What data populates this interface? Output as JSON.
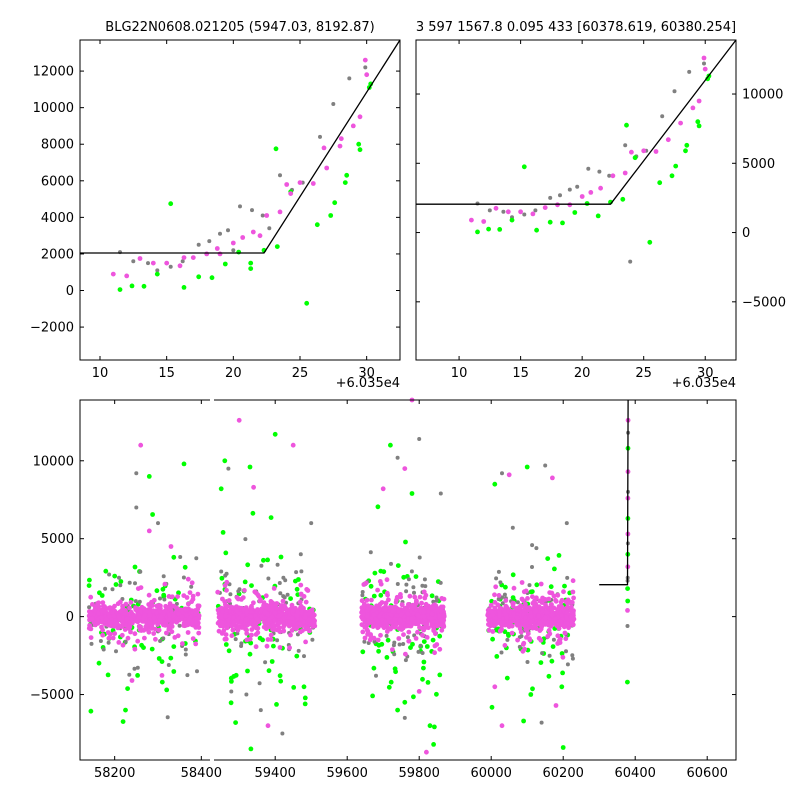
{
  "chart_data": [
    {
      "type": "scatter",
      "title": "BLG22N0608.021205 (5947.03, 8192.87)",
      "x_offset_label": "+6.035e4",
      "xlim": [
        8.5,
        32.5
      ],
      "ylim": [
        -3800,
        13700
      ],
      "xticks": [
        10,
        15,
        20,
        25,
        30
      ],
      "yticks": [
        -2000,
        0,
        2000,
        4000,
        6000,
        8000,
        10000,
        12000
      ],
      "model_line": [
        [
          8.5,
          2050
        ],
        [
          22.3,
          2050
        ],
        [
          32.5,
          13700
        ]
      ],
      "colors": {
        "gray": "#808080",
        "green": "#00ff00",
        "magenta": "#ee55dd"
      },
      "series": [
        {
          "color": "gray",
          "points": [
            [
              11.5,
              2100
            ],
            [
              12.5,
              1600
            ],
            [
              13.6,
              1500
            ],
            [
              14.3,
              1100
            ],
            [
              15.3,
              1300
            ],
            [
              16.2,
              1600
            ],
            [
              17.4,
              2500
            ],
            [
              18.2,
              2700
            ],
            [
              19.0,
              3100
            ],
            [
              19.6,
              3300
            ],
            [
              20.5,
              4600
            ],
            [
              21.4,
              4400
            ],
            [
              22.2,
              4100
            ],
            [
              23.5,
              6300
            ],
            [
              24.4,
              5500
            ],
            [
              25.2,
              5900
            ],
            [
              26.5,
              8400
            ],
            [
              27.5,
              10200
            ],
            [
              28.7,
              11600
            ],
            [
              29.9,
              12200
            ],
            [
              22.7,
              3400
            ],
            [
              20.0,
              2200
            ]
          ]
        },
        {
          "color": "green",
          "points": [
            [
              11.5,
              50
            ],
            [
              12.4,
              250
            ],
            [
              13.3,
              230
            ],
            [
              14.3,
              900
            ],
            [
              15.3,
              4750
            ],
            [
              16.3,
              170
            ],
            [
              17.4,
              750
            ],
            [
              18.4,
              700
            ],
            [
              19.4,
              1450
            ],
            [
              20.4,
              2100
            ],
            [
              21.3,
              1200
            ],
            [
              22.3,
              2200
            ],
            [
              23.2,
              7750
            ],
            [
              23.3,
              2400
            ],
            [
              24.3,
              5400
            ],
            [
              25.5,
              -700
            ],
            [
              26.3,
              3600
            ],
            [
              27.3,
              4100
            ],
            [
              27.6,
              4800
            ],
            [
              28.5,
              6300
            ],
            [
              28.4,
              5900
            ],
            [
              29.4,
              8000
            ],
            [
              29.5,
              7700
            ],
            [
              30.2,
              11100
            ],
            [
              30.3,
              11300
            ],
            [
              21.3,
              1500
            ]
          ]
        },
        {
          "color": "magenta",
          "points": [
            [
              11.0,
              900
            ],
            [
              12.0,
              800
            ],
            [
              13.0,
              1750
            ],
            [
              14.0,
              1500
            ],
            [
              15.0,
              1500
            ],
            [
              16.0,
              1350
            ],
            [
              17.0,
              1800
            ],
            [
              18.0,
              2000
            ],
            [
              19.0,
              2000
            ],
            [
              20.0,
              2600
            ],
            [
              20.7,
              2900
            ],
            [
              21.5,
              3200
            ],
            [
              22.5,
              4100
            ],
            [
              23.5,
              4300
            ],
            [
              24.0,
              5800
            ],
            [
              25.0,
              5900
            ],
            [
              26.0,
              5850
            ],
            [
              27.0,
              6700
            ],
            [
              28.0,
              7900
            ],
            [
              29.0,
              9000
            ],
            [
              29.5,
              9500
            ],
            [
              30.0,
              11800
            ],
            [
              29.9,
              12600
            ],
            [
              16.3,
              1800
            ],
            [
              18.8,
              2300
            ],
            [
              22.0,
              3000
            ],
            [
              24.3,
              5300
            ],
            [
              26.8,
              7800
            ],
            [
              28.1,
              8300
            ]
          ]
        }
      ]
    },
    {
      "type": "scatter",
      "title": "3 597 1567.8 0.095 433 [60378.619, 60380.254]",
      "x_offset_label": "+6.035e4",
      "xlim": [
        6.5,
        32.5
      ],
      "ylim": [
        -9200,
        13900
      ],
      "xticks": [
        10,
        15,
        20,
        25,
        30
      ],
      "yticks": [
        -5000,
        0,
        5000,
        10000
      ],
      "model_line": [
        [
          6.5,
          2050
        ],
        [
          22.3,
          2050
        ],
        [
          32.5,
          13900
        ]
      ],
      "colors": {
        "gray": "#808080",
        "green": "#00ff00",
        "magenta": "#ee55dd"
      },
      "series": [
        {
          "color": "gray",
          "points": [
            [
              11.5,
              2100
            ],
            [
              12.5,
              1600
            ],
            [
              13.6,
              1500
            ],
            [
              14.3,
              1100
            ],
            [
              15.3,
              1300
            ],
            [
              16.2,
              1600
            ],
            [
              17.4,
              2500
            ],
            [
              18.2,
              2700
            ],
            [
              19.0,
              3100
            ],
            [
              19.6,
              3300
            ],
            [
              20.5,
              4600
            ],
            [
              21.4,
              4400
            ],
            [
              22.2,
              4100
            ],
            [
              23.5,
              6300
            ],
            [
              23.9,
              -2100
            ],
            [
              24.4,
              5500
            ],
            [
              25.2,
              5900
            ],
            [
              26.5,
              8400
            ],
            [
              27.5,
              10200
            ],
            [
              28.7,
              11600
            ],
            [
              29.9,
              12200
            ]
          ]
        },
        {
          "color": "green",
          "points": [
            [
              11.5,
              50
            ],
            [
              12.4,
              250
            ],
            [
              13.3,
              230
            ],
            [
              14.3,
              900
            ],
            [
              15.3,
              4750
            ],
            [
              16.3,
              170
            ],
            [
              17.4,
              750
            ],
            [
              18.4,
              700
            ],
            [
              19.4,
              1450
            ],
            [
              20.4,
              2100
            ],
            [
              21.3,
              1200
            ],
            [
              22.3,
              2200
            ],
            [
              23.6,
              7750
            ],
            [
              23.3,
              2400
            ],
            [
              24.3,
              5400
            ],
            [
              25.5,
              -700
            ],
            [
              26.3,
              3600
            ],
            [
              27.3,
              4100
            ],
            [
              27.6,
              4800
            ],
            [
              28.5,
              6300
            ],
            [
              28.4,
              5900
            ],
            [
              29.4,
              8000
            ],
            [
              29.5,
              7700
            ],
            [
              30.2,
              11100
            ],
            [
              30.3,
              11300
            ]
          ]
        },
        {
          "color": "magenta",
          "points": [
            [
              11.0,
              900
            ],
            [
              12.0,
              800
            ],
            [
              13.0,
              1750
            ],
            [
              14.0,
              1500
            ],
            [
              15.0,
              1500
            ],
            [
              16.0,
              1350
            ],
            [
              17.0,
              1800
            ],
            [
              18.0,
              2000
            ],
            [
              19.0,
              2000
            ],
            [
              20.0,
              2600
            ],
            [
              20.7,
              2900
            ],
            [
              21.5,
              3200
            ],
            [
              22.5,
              4100
            ],
            [
              23.5,
              4300
            ],
            [
              24.0,
              5800
            ],
            [
              25.0,
              5900
            ],
            [
              26.0,
              5850
            ],
            [
              27.0,
              6700
            ],
            [
              28.0,
              7900
            ],
            [
              29.0,
              9000
            ],
            [
              29.5,
              9500
            ],
            [
              30.0,
              11800
            ],
            [
              29.9,
              12600
            ]
          ]
        }
      ]
    },
    {
      "type": "scatter",
      "broken_x_axis": true,
      "xlim_left": [
        58120,
        58420
      ],
      "xlim_right": [
        59230,
        60680
      ],
      "ylim": [
        -9200,
        13900
      ],
      "xticks_left": [
        58200,
        58400
      ],
      "xticks_right": [
        59400,
        59600,
        59800,
        60000,
        60200,
        60400,
        60600
      ],
      "yticks": [
        -5000,
        0,
        5000,
        10000
      ],
      "model_line": [
        [
          60300,
          2050
        ],
        [
          60378.6,
          2050
        ],
        [
          60380.3,
          13900
        ]
      ],
      "colors": {
        "gray": "#808080",
        "green": "#00ff00",
        "magenta": "#ee55dd"
      },
      "seasons": [
        {
          "x": [
            58140,
            58395
          ],
          "outliers": [
            [
              58225,
              -6000
            ],
            [
              58250,
              9200
            ],
            [
              58260,
              11000
            ],
            [
              58280,
              9000
            ],
            [
              58300,
              6000
            ],
            [
              58330,
              4500
            ],
            [
              58360,
              9800
            ],
            [
              58250,
              7000
            ],
            [
              58280,
              5500
            ],
            [
              58320,
              -4700
            ],
            [
              58390,
              -3500
            ],
            [
              58240,
              -4100
            ],
            [
              58310,
              -4200
            ],
            [
              58210,
              2500
            ],
            [
              58370,
              2400
            ],
            [
              58200,
              2600
            ]
          ]
        },
        {
          "x": [
            59240,
            59510
          ],
          "outliers": [
            [
              59260,
              10000
            ],
            [
              59270,
              9500
            ],
            [
              59300,
              12600
            ],
            [
              59330,
              9600
            ],
            [
              59360,
              -6000
            ],
            [
              59380,
              -7000
            ],
            [
              59400,
              11700
            ],
            [
              59420,
              -7500
            ],
            [
              59450,
              11000
            ],
            [
              59480,
              -4500
            ],
            [
              59500,
              6000
            ],
            [
              59340,
              8300
            ],
            [
              59290,
              -6800
            ],
            [
              59320,
              -5000
            ],
            [
              59440,
              -2000
            ],
            [
              59250,
              8200
            ]
          ]
        },
        {
          "x": [
            59640,
            59870
          ],
          "outliers": [
            [
              59720,
              11000
            ],
            [
              59740,
              10200
            ],
            [
              59760,
              9500
            ],
            [
              59780,
              7900
            ],
            [
              59800,
              11400
            ],
            [
              59820,
              -8700
            ],
            [
              59840,
              -8200
            ],
            [
              59860,
              7900
            ],
            [
              59700,
              8200
            ],
            [
              59740,
              -6000
            ],
            [
              59760,
              -6500
            ],
            [
              59800,
              -4800
            ],
            [
              59830,
              -7000
            ],
            [
              59680,
              -3800
            ],
            [
              59780,
              13900
            ],
            [
              59760,
              -5500
            ]
          ]
        },
        {
          "x": [
            59990,
            60230
          ],
          "outliers": [
            [
              60010,
              8500
            ],
            [
              60030,
              9200
            ],
            [
              60050,
              9100
            ],
            [
              60100,
              9600
            ],
            [
              60150,
              9700
            ],
            [
              60170,
              8900
            ],
            [
              60200,
              -8400
            ],
            [
              60210,
              6000
            ],
            [
              60030,
              -7000
            ],
            [
              60090,
              -6700
            ],
            [
              60140,
              -6800
            ],
            [
              60180,
              -5700
            ],
            [
              60110,
              -5000
            ],
            [
              60060,
              5700
            ],
            [
              60010,
              -4500
            ]
          ]
        }
      ],
      "event_points": [
        [
          60378.4,
          -4200
        ],
        [
          60378.6,
          -600
        ],
        [
          60378.7,
          400
        ],
        [
          60379.0,
          1800
        ],
        [
          60379.2,
          2500
        ],
        [
          60379.4,
          3200
        ],
        [
          60379.5,
          4000
        ],
        [
          60379.6,
          4700
        ],
        [
          60379.7,
          5300
        ],
        [
          60379.8,
          6300
        ],
        [
          60379.9,
          8000
        ],
        [
          60380.0,
          9300
        ],
        [
          60380.1,
          10800
        ],
        [
          60380.2,
          11800
        ],
        [
          60380.25,
          12600
        ],
        [
          60379.3,
          1000
        ],
        [
          60378.9,
          2300
        ],
        [
          60379.6,
          7600
        ]
      ]
    }
  ]
}
